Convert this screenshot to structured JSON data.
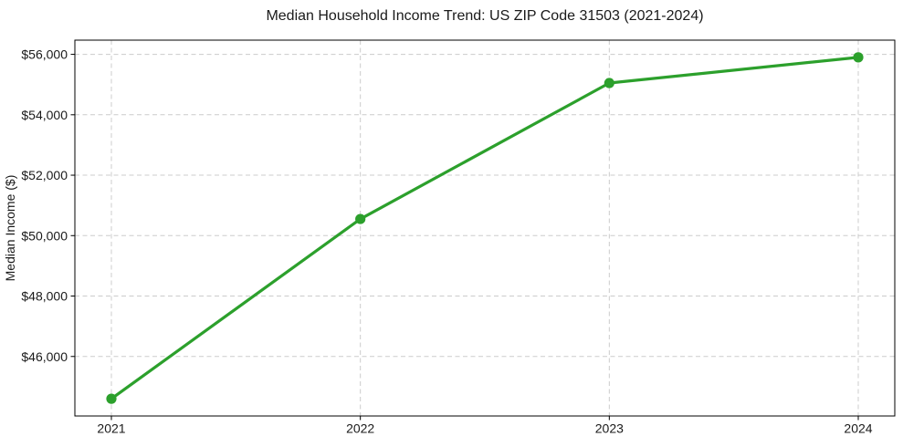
{
  "chart_data": {
    "type": "line",
    "title": "Median Household Income Trend: US ZIP Code 31503 (2021-2024)",
    "xlabel": "",
    "ylabel": "Median Income ($)",
    "categories": [
      "2021",
      "2022",
      "2023",
      "2024"
    ],
    "series": [
      {
        "name": "Median Household Income",
        "values": [
          44600,
          50550,
          55050,
          55900
        ]
      }
    ],
    "ylim": [
      44030,
      56470
    ],
    "yticks": [
      46000,
      48000,
      50000,
      52000,
      54000,
      56000
    ],
    "ytick_labels": [
      "$46,000",
      "$48,000",
      "$50,000",
      "$52,000",
      "$54,000",
      "$56,000"
    ],
    "grid": true,
    "grid_style": "dashed",
    "legend_position": "none",
    "line_color": "#2ca02c",
    "marker": "circle",
    "grid_color": "#cccccc",
    "spine_color": "#000000",
    "text_color": "#1a1a1a",
    "background_color": "#ffffff"
  }
}
